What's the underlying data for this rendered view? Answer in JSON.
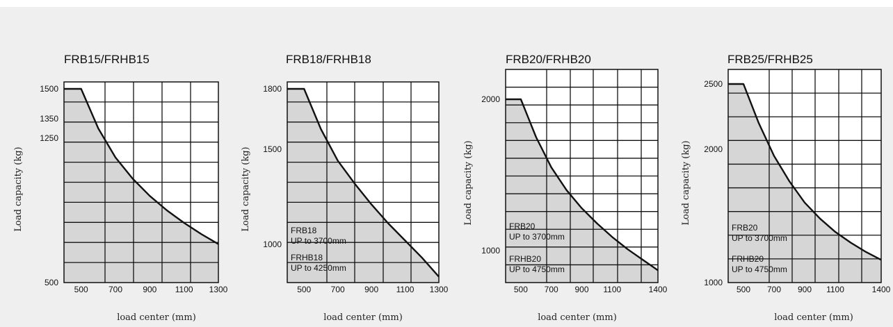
{
  "chart_data": [
    {
      "type": "area",
      "title": "FRB15/FRHB15",
      "xlabel": "load center (mm)",
      "ylabel": "Load capacity (kg)",
      "x_ticks": [
        "500",
        "700",
        "900",
        "1100",
        "1300"
      ],
      "y_ticks": [
        "500",
        "1250",
        "1350",
        "1500"
      ],
      "x": [
        500,
        600,
        700,
        800,
        900,
        1000,
        1100,
        1200,
        1300
      ],
      "y": [
        1500,
        1300,
        1150,
        1040,
        950,
        875,
        810,
        752,
        700
      ],
      "grid": true,
      "notes": []
    },
    {
      "type": "area",
      "title": "FRB18/FRHB18",
      "xlabel": "load center (mm)",
      "ylabel": "Load capacity (kg)",
      "x_ticks": [
        "500",
        "700",
        "900",
        "1100",
        "1300"
      ],
      "y_ticks": [
        "1000",
        "1500",
        "1800"
      ],
      "x": [
        500,
        600,
        700,
        800,
        900,
        1000,
        1100,
        1200,
        1300
      ],
      "y": [
        1800,
        1600,
        1440,
        1320,
        1210,
        1110,
        1020,
        930,
        830
      ],
      "grid": true,
      "notes": [
        {
          "model": "FRB18",
          "range": "UP to 3700mm"
        },
        {
          "model": "FRHB18",
          "range": "UP to 4250mm"
        }
      ]
    },
    {
      "type": "area",
      "title": "FRB20/FRHB20",
      "xlabel": "load center (mm)",
      "ylabel": "Load capacity (kg)",
      "x_ticks": [
        "500",
        "700",
        "900",
        "1100",
        "1400"
      ],
      "y_ticks": [
        "1000",
        "2000"
      ],
      "x": [
        500,
        600,
        700,
        800,
        900,
        1000,
        1100,
        1200,
        1300,
        1400
      ],
      "y": [
        2000,
        1750,
        1550,
        1400,
        1280,
        1180,
        1090,
        1010,
        940,
        870
      ],
      "grid": true,
      "notes": [
        {
          "model": "FRB20",
          "range": "UP to 3700mm"
        },
        {
          "model": "FRHB20",
          "range": "UP to 4750mm"
        }
      ]
    },
    {
      "type": "area",
      "title": "FRB25/FRHB25",
      "xlabel": "load center (mm)",
      "ylabel": "Load capacity (kg)",
      "x_ticks": [
        "500",
        "700",
        "900",
        "1100",
        "1400"
      ],
      "y_ticks": [
        "1000",
        "2000",
        "2500"
      ],
      "x": [
        500,
        600,
        700,
        800,
        900,
        1000,
        1100,
        1200,
        1300,
        1400
      ],
      "y": [
        2500,
        2200,
        1950,
        1760,
        1600,
        1480,
        1380,
        1300,
        1230,
        1170
      ],
      "grid": true,
      "notes": [
        {
          "model": "FRB20",
          "range": "UP to 3700mm"
        },
        {
          "model": "FRHB20",
          "range": "UP to 4750mm"
        }
      ]
    }
  ]
}
